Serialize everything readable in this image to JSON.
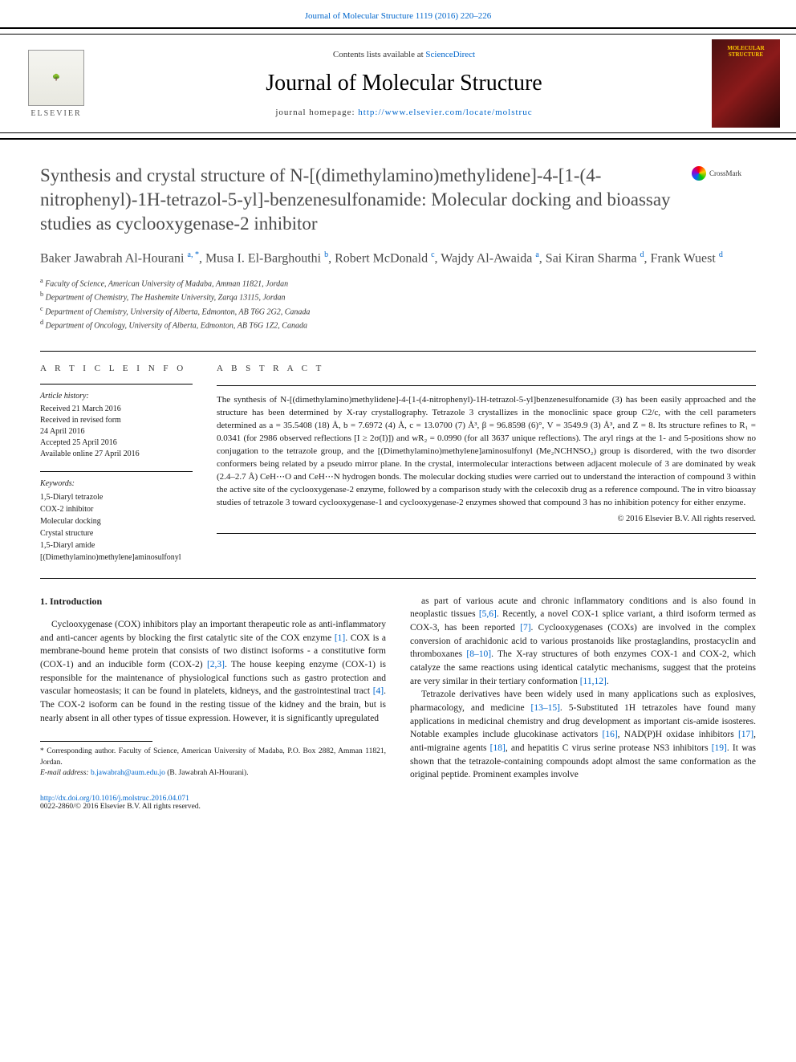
{
  "top_link": "Journal of Molecular Structure 1119 (2016) 220–226",
  "header": {
    "contents_prefix": "Contents lists available at ",
    "contents_link": "ScienceDirect",
    "journal_name": "Journal of Molecular Structure",
    "homepage_prefix": "journal homepage: ",
    "homepage_url": "http://www.elsevier.com/locate/molstruc",
    "elsevier_label": "ELSEVIER",
    "cover_label": "MOLECULAR STRUCTURE"
  },
  "crossmark": "CrossMark",
  "title": "Synthesis and crystal structure of N-[(dimethylamino)methylidene]-4-[1-(4-nitrophenyl)-1H-tetrazol-5-yl]-benzenesulfonamide: Molecular docking and bioassay studies as cyclooxygenase-2 inhibitor",
  "authors_html": "Baker Jawabrah Al-Hourani <sup>a, *</sup>, Musa I. El-Barghouthi <sup>b</sup>, Robert McDonald <sup>c</sup>, Wajdy Al-Awaida <sup>a</sup>, Sai Kiran Sharma <sup>d</sup>, Frank Wuest <sup>d</sup>",
  "affiliations": [
    {
      "sup": "a",
      "text": "Faculty of Science, American University of Madaba, Amman 11821, Jordan"
    },
    {
      "sup": "b",
      "text": "Department of Chemistry, The Hashemite University, Zarqa 13115, Jordan"
    },
    {
      "sup": "c",
      "text": "Department of Chemistry, University of Alberta, Edmonton, AB T6G 2G2, Canada"
    },
    {
      "sup": "d",
      "text": "Department of Oncology, University of Alberta, Edmonton, AB T6G 1Z2, Canada"
    }
  ],
  "article_info": {
    "heading": "A R T I C L E   I N F O",
    "history_label": "Article history:",
    "history": [
      "Received 21 March 2016",
      "Received in revised form",
      "24 April 2016",
      "Accepted 25 April 2016",
      "Available online 27 April 2016"
    ],
    "keywords_label": "Keywords:",
    "keywords": [
      "1,5-Diaryl tetrazole",
      "COX-2 inhibitor",
      "Molecular docking",
      "Crystal structure",
      "1,5-Diaryl amide",
      "[(Dimethylamino)methylene]aminosulfonyl"
    ]
  },
  "abstract": {
    "heading": "A B S T R A C T",
    "text": "The synthesis of N-[(dimethylamino)methylidene]-4-[1-(4-nitrophenyl)-1H-tetrazol-5-yl]benzenesulfonamide (3) has been easily approached and the structure has been determined by X-ray crystallography. Tetrazole 3 crystallizes in the monoclinic space group C2/c, with the cell parameters determined as a = 35.5408 (18) Å, b = 7.6972 (4) Å, c = 13.0700 (7) Å³, β = 96.8598 (6)°, V = 3549.9 (3) Å³, and Z = 8. Its structure refines to R₁ = 0.0341 (for 2986 observed reflections [I ≥ 2σ(I)]) and wR₂ = 0.0990 (for all 3637 unique reflections). The aryl rings at the 1- and 5-positions show no conjugation to the tetrazole group, and the [(Dimethylamino)methylene]aminosulfonyl (Me₂NCHNSO₂) group is disordered, with the two disorder conformers being related by a pseudo mirror plane. In the crystal, intermolecular interactions between adjacent molecule of 3 are dominated by weak (2.4–2.7 Å) CeH⋯O and CeH⋯N hydrogen bonds. The molecular docking studies were carried out to understand the interaction of compound 3 within the active site of the cyclooxygenase-2 enzyme, followed by a comparison study with the celecoxib drug as a reference compound. The in vitro bioassay studies of tetrazole 3 toward cyclooxygenase-1 and cyclooxygenase-2 enzymes showed that compound 3 has no inhibition potency for either enzyme.",
    "copyright": "© 2016 Elsevier B.V. All rights reserved."
  },
  "body": {
    "section_heading": "1. Introduction",
    "left_paragraphs": [
      "Cyclooxygenase (COX) inhibitors play an important therapeutic role as anti-inflammatory and anti-cancer agents by blocking the first catalytic site of the COX enzyme <span class=\"ref-link\">[1]</span>. COX is a membrane-bound heme protein that consists of two distinct isoforms - a constitutive form (COX-1) and an inducible form (COX-2) <span class=\"ref-link\">[2,3]</span>. The house keeping enzyme (COX-1) is responsible for the maintenance of physiological functions such as gastro protection and vascular homeostasis; it can be found in platelets, kidneys, and the gastrointestinal tract <span class=\"ref-link\">[4]</span>. The COX-2 isoform can be found in the resting tissue of the kidney and the brain, but is nearly absent in all other types of tissue expression. However, it is significantly upregulated"
    ],
    "right_paragraphs": [
      "as part of various acute and chronic inflammatory conditions and is also found in neoplastic tissues <span class=\"ref-link\">[5,6]</span>. Recently, a novel COX-1 splice variant, a third isoform termed as COX-3, has been reported <span class=\"ref-link\">[7]</span>. Cyclooxygenases (COXs) are involved in the complex conversion of arachidonic acid to various prostanoids like prostaglandins, prostacyclin and thromboxanes <span class=\"ref-link\">[8–10]</span>. The X-ray structures of both enzymes COX-1 and COX-2, which catalyze the same reactions using identical catalytic mechanisms, suggest that the proteins are very similar in their tertiary conformation <span class=\"ref-link\">[11,12]</span>.",
      "Tetrazole derivatives have been widely used in many applications such as explosives, pharmacology, and medicine <span class=\"ref-link\">[13–15]</span>. 5-Substituted 1H tetrazoles have found many applications in medicinal chemistry and drug development as important cis-amide isosteres. Notable examples include glucokinase activators <span class=\"ref-link\">[16]</span>, NAD(P)H oxidase inhibitors <span class=\"ref-link\">[17]</span>, anti-migraine agents <span class=\"ref-link\">[18]</span>, and hepatitis C virus serine protease NS3 inhibitors <span class=\"ref-link\">[19]</span>. It was shown that the tetrazole-containing compounds adopt almost the same conformation as the original peptide. Prominent examples involve"
    ]
  },
  "footnote": {
    "corresponding": "* Corresponding author. Faculty of Science, American University of Madaba, P.O. Box 2882, Amman 11821, Jordan.",
    "email_label": "E-mail address: ",
    "email": "b.jawabrah@aum.edu.jo",
    "email_suffix": " (B. Jawabrah Al-Hourani)."
  },
  "doi": {
    "url": "http://dx.doi.org/10.1016/j.molstruc.2016.04.071",
    "issn_line": "0022-2860/© 2016 Elsevier B.V. All rights reserved."
  },
  "colors": {
    "link": "#0066cc",
    "text": "#1a1a1a",
    "heading_gray": "#4a4a4a",
    "border": "#000000"
  }
}
